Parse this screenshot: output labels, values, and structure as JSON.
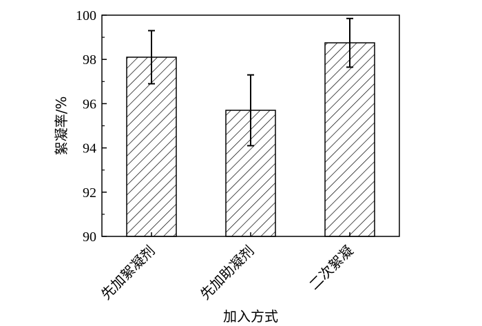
{
  "chart_data": {
    "type": "bar",
    "title": "",
    "xlabel": "加入方式",
    "ylabel": "絮凝率/%",
    "categories": [
      "先加絮凝剂",
      "先加助凝剂",
      "二次絮凝"
    ],
    "series": [
      {
        "values": [
          98.1,
          95.7,
          98.75
        ],
        "errors": [
          1.2,
          1.6,
          1.1
        ]
      }
    ],
    "ylim": [
      90,
      100
    ],
    "yticks": [
      "90",
      "92",
      "94",
      "96",
      "98",
      "100"
    ],
    "grid": false,
    "bar_fill": "diagonal-hatch",
    "colors": {
      "bar_stroke": "#000000",
      "hatch": "#000000",
      "axis": "#000000",
      "background": "#ffffff"
    }
  }
}
